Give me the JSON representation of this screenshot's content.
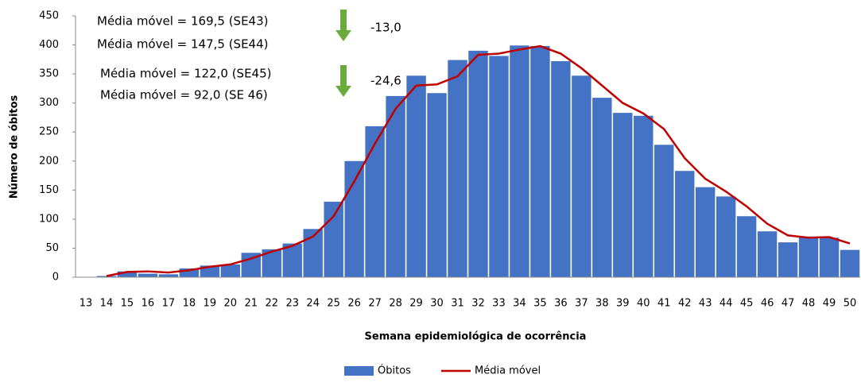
{
  "chart_data": {
    "type": "bar-line",
    "x_label": "Semana epidemiológica  de ocorrência",
    "y_label": "Número de óbitos",
    "categories": [
      "13",
      "14",
      "15",
      "16",
      "17",
      "18",
      "19",
      "20",
      "21",
      "22",
      "23",
      "24",
      "25",
      "26",
      "27",
      "28",
      "29",
      "30",
      "31",
      "32",
      "33",
      "34",
      "35",
      "36",
      "37",
      "38",
      "39",
      "40",
      "41",
      "42",
      "43",
      "44",
      "45",
      "46",
      "47",
      "48",
      "49",
      "50"
    ],
    "series": [
      {
        "name": "Óbitos",
        "type": "bar",
        "color": "#4472c4",
        "values": [
          0,
          2,
          10,
          6,
          5,
          15,
          20,
          22,
          42,
          48,
          58,
          83,
          130,
          200,
          260,
          312,
          347,
          317,
          374,
          390,
          381,
          399,
          398,
          372,
          347,
          309,
          283,
          278,
          228,
          183,
          155,
          139,
          105,
          79,
          60,
          70,
          68,
          47
        ]
      },
      {
        "name": "Média móvel",
        "type": "line",
        "color": "#c00000",
        "values": [
          null,
          2,
          9,
          10,
          8,
          12,
          18,
          22,
          32,
          44,
          54,
          70,
          105,
          165,
          230,
          290,
          330,
          332,
          346,
          383,
          385,
          392,
          398,
          385,
          360,
          330,
          300,
          282,
          255,
          205,
          169.5,
          147.5,
          122.0,
          92.0,
          72,
          68,
          69,
          58
        ]
      }
    ],
    "ylim": [
      0,
      450
    ],
    "yticks": [
      0,
      50,
      100,
      150,
      200,
      250,
      300,
      350,
      400,
      450
    ],
    "annotations": [
      "Média móvel = 169,5  (SE43)",
      "Média móvel = 147,5  (SE44)",
      "Média móvel = 122,0  (SE45)",
      "Média móvel = 92,0  (SE 46)",
      "-13,0",
      "-24,6"
    ]
  }
}
